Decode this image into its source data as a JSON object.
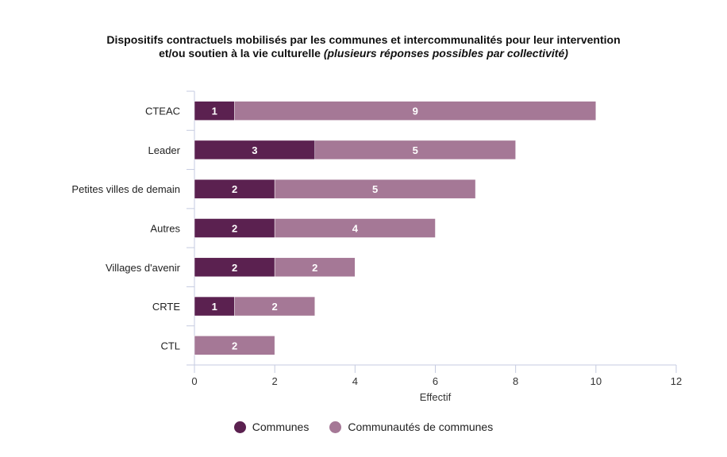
{
  "chart_data": {
    "type": "bar",
    "orientation": "horizontal",
    "stacked": true,
    "title": "Dispositifs contractuels mobilisés par les communes et intercommunalités pour leur intervention",
    "title_line2": "et/ou soutien à la vie culturelle",
    "title_italic": "(plusieurs réponses possibles par collectivité)",
    "categories": [
      "CTEAC",
      "Leader",
      "Petites villes de demain",
      "Autres",
      "Villages d'avenir",
      "CRTE",
      "CTL"
    ],
    "series": [
      {
        "name": "Communes",
        "color": "#5b2150",
        "values": [
          1,
          3,
          2,
          2,
          2,
          1,
          0
        ]
      },
      {
        "name": "Communautés de communes",
        "color": "#a57896",
        "values": [
          9,
          5,
          5,
          4,
          2,
          2,
          2
        ]
      }
    ],
    "xlabel": "Effectif",
    "ylabel": "",
    "xlim": [
      0,
      12
    ],
    "xticks": [
      0,
      2,
      4,
      6,
      8,
      10,
      12
    ],
    "grid": false,
    "legend_position": "bottom"
  }
}
